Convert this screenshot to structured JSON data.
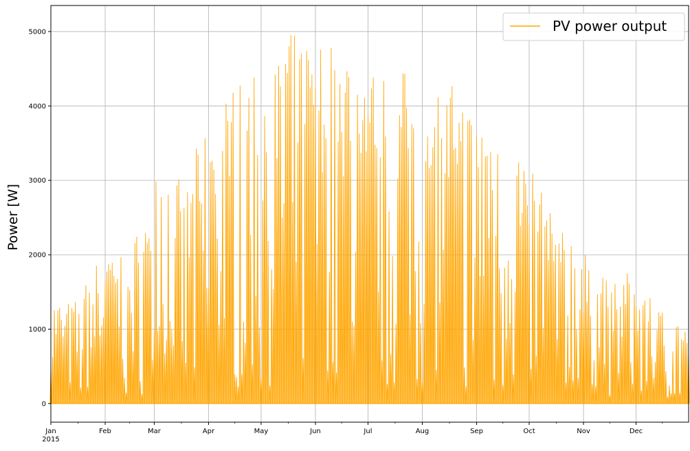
{
  "chart_data": {
    "type": "line",
    "title": "",
    "xlabel": "",
    "ylabel": "Power [W]",
    "x_range": [
      "2015-01-01",
      "2015-12-31"
    ],
    "x_ticks": [
      {
        "date": "2015-01-01",
        "label": "Jan",
        "sublabel": "2015"
      },
      {
        "date": "2015-02-01",
        "label": "Feb"
      },
      {
        "date": "2015-03-01",
        "label": "Mar"
      },
      {
        "date": "2015-04-01",
        "label": "Apr"
      },
      {
        "date": "2015-05-01",
        "label": "May"
      },
      {
        "date": "2015-06-01",
        "label": "Jun"
      },
      {
        "date": "2015-07-01",
        "label": "Jul"
      },
      {
        "date": "2015-08-01",
        "label": "Aug"
      },
      {
        "date": "2015-09-01",
        "label": "Sep"
      },
      {
        "date": "2015-10-01",
        "label": "Oct"
      },
      {
        "date": "2015-11-01",
        "label": "Nov"
      },
      {
        "date": "2015-12-01",
        "label": "Dec"
      }
    ],
    "ylim": [
      -250,
      5350
    ],
    "y_ticks": [
      0,
      1000,
      2000,
      3000,
      4000,
      5000
    ],
    "grid": true,
    "legend_position": "top-right",
    "series": [
      {
        "name": "PV power output",
        "color": "#ffa500",
        "description_sampling": "daily peak power (W), estimated from the plotted envelope",
        "x": [
          "2015-01-01",
          "2015-01-15",
          "2015-02-01",
          "2015-02-15",
          "2015-03-01",
          "2015-03-15",
          "2015-04-01",
          "2015-04-15",
          "2015-05-01",
          "2015-05-15",
          "2015-06-01",
          "2015-06-15",
          "2015-07-01",
          "2015-07-15",
          "2015-08-01",
          "2015-08-15",
          "2015-09-01",
          "2015-09-15",
          "2015-10-01",
          "2015-10-15",
          "2015-11-01",
          "2015-11-15",
          "2015-12-01",
          "2015-12-15",
          "2015-12-31"
        ],
        "daily_peak": [
          1450,
          1400,
          2100,
          2000,
          3050,
          3050,
          3700,
          4300,
          4450,
          4950,
          5050,
          4850,
          4500,
          4500,
          4450,
          4400,
          3850,
          3700,
          3300,
          2450,
          2050,
          1750,
          1750,
          1300,
          950
        ]
      }
    ]
  }
}
